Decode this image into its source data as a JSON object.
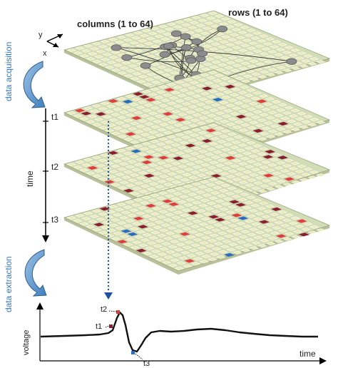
{
  "labels": {
    "columns": "columns (1 to 64)",
    "rows": "rows (1 to 64)",
    "axis_x": "x",
    "axis_y": "y",
    "data_acquisition": "data acquisition",
    "data_extraction": "data extraction",
    "time_axis": "time",
    "voltage": "voltage",
    "time_trace": "time"
  },
  "time_points": {
    "t1": "t1",
    "t2": "t2",
    "t3": "t3"
  },
  "colors": {
    "grid_fill": "#d2dcb6",
    "grid_line": "#ffffff",
    "cell_fill": "#ebe8b0",
    "neuron": "#8c8c8c",
    "dark_red": "#8b1e2e",
    "red": "#e03c3c",
    "blue": "#2a6cc0",
    "arrow_blue": "#5b93c9",
    "dotted_blue": "#1f4fa0"
  }
}
